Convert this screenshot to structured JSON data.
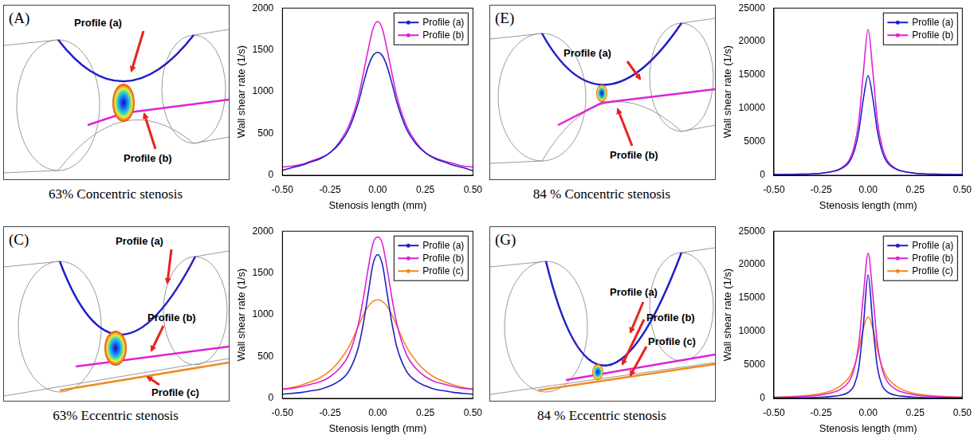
{
  "diagrams": [
    {
      "letter": "(A)",
      "caption": "63% Concentric stenosis",
      "labels": [
        "Profile (a)",
        "Profile (b)"
      ]
    },
    {
      "letter": "(C)",
      "caption": "63% Eccentric stenosis",
      "labels": [
        "Profile (a)",
        "Profile (b)",
        "Profile (c)"
      ]
    },
    {
      "letter": "(E)",
      "caption": "84 % Concentric stenosis",
      "labels": [
        "Profile (a)",
        "Profile (b)"
      ]
    },
    {
      "letter": "(G)",
      "caption": "84 % Eccentric stenosis",
      "labels": [
        "Profile (a)",
        "Profile (b)",
        "Profile (c)"
      ]
    }
  ],
  "chart_data": [
    {
      "type": "line",
      "xlabel": "Stenosis length (mm)",
      "ylabel": "Wall shear rate (1/s)",
      "x": [
        -0.5,
        -0.45,
        -0.4,
        -0.35,
        -0.3,
        -0.25,
        -0.2,
        -0.15,
        -0.1,
        -0.075,
        -0.05,
        -0.025,
        0,
        0.025,
        0.05,
        0.075,
        0.1,
        0.15,
        0.2,
        0.25,
        0.3,
        0.35,
        0.4,
        0.45,
        0.5
      ],
      "series": [
        {
          "name": "Profile (a)",
          "color": "#1f1fc8",
          "values": [
            60,
            90,
            120,
            160,
            200,
            270,
            380,
            560,
            880,
            1100,
            1300,
            1430,
            1470,
            1430,
            1300,
            1100,
            880,
            560,
            380,
            270,
            200,
            160,
            120,
            90,
            55
          ]
        },
        {
          "name": "Profile (b)",
          "color": "#e020d8",
          "values": [
            100,
            110,
            130,
            170,
            210,
            270,
            400,
            600,
            950,
            1220,
            1500,
            1750,
            1840,
            1750,
            1500,
            1220,
            950,
            600,
            400,
            270,
            210,
            170,
            140,
            110,
            100
          ]
        }
      ],
      "xlim": [
        -0.5,
        0.5
      ],
      "xticks": [
        {
          "value": -0.5,
          "label": "-0.50"
        },
        {
          "value": -0.25,
          "label": "-0.25"
        },
        {
          "value": 0,
          "label": "0.00"
        },
        {
          "value": 0.25,
          "label": "0.25"
        },
        {
          "value": 0.5,
          "label": "0.50"
        }
      ],
      "ylim": [
        0,
        2000
      ],
      "yticks": [
        0,
        500,
        1000,
        1500,
        2000
      ],
      "legend": "upper right",
      "grid": false
    },
    {
      "type": "line",
      "xlabel": "Stenosis length (mm)",
      "ylabel": "Wall shear rate (1/s)",
      "x": [
        -0.5,
        -0.45,
        -0.4,
        -0.35,
        -0.3,
        -0.25,
        -0.2,
        -0.15,
        -0.1,
        -0.075,
        -0.05,
        -0.025,
        0,
        0.025,
        0.05,
        0.075,
        0.1,
        0.15,
        0.2,
        0.25,
        0.3,
        0.35,
        0.4,
        0.45,
        0.5
      ],
      "series": [
        {
          "name": "Profile (a)",
          "color": "#1f1fc8",
          "values": [
            50,
            60,
            70,
            90,
            110,
            150,
            210,
            330,
            620,
            900,
            1250,
            1600,
            1720,
            1600,
            1250,
            900,
            620,
            330,
            210,
            150,
            110,
            90,
            70,
            60,
            50
          ]
        },
        {
          "name": "Profile (b)",
          "color": "#e020d8",
          "values": [
            110,
            120,
            140,
            170,
            200,
            260,
            360,
            530,
            900,
            1200,
            1550,
            1850,
            1930,
            1850,
            1550,
            1200,
            900,
            530,
            360,
            260,
            200,
            170,
            140,
            120,
            110
          ]
        },
        {
          "name": "Profile (c)",
          "color": "#f28a1e",
          "values": [
            110,
            130,
            160,
            200,
            250,
            330,
            450,
            620,
            870,
            1000,
            1100,
            1160,
            1180,
            1160,
            1100,
            1000,
            870,
            620,
            450,
            330,
            250,
            200,
            160,
            130,
            110
          ]
        }
      ],
      "xlim": [
        -0.5,
        0.5
      ],
      "xticks": [
        {
          "value": -0.5,
          "label": "-0.50"
        },
        {
          "value": -0.25,
          "label": "-0.25"
        },
        {
          "value": 0,
          "label": "0.00"
        },
        {
          "value": 0.25,
          "label": "0.25"
        },
        {
          "value": 0.5,
          "label": "0.50"
        }
      ],
      "ylim": [
        0,
        2000
      ],
      "yticks": [
        0,
        500,
        1000,
        1500,
        2000
      ],
      "legend": "upper right",
      "grid": false
    },
    {
      "type": "line",
      "xlabel": "Stenosis length (mm)",
      "ylabel": "Wall shear rate (1/s)",
      "x": [
        -0.5,
        -0.45,
        -0.4,
        -0.35,
        -0.3,
        -0.25,
        -0.2,
        -0.15,
        -0.1,
        -0.075,
        -0.05,
        -0.025,
        0,
        0.025,
        0.05,
        0.075,
        0.1,
        0.15,
        0.2,
        0.25,
        0.3,
        0.35,
        0.4,
        0.45,
        0.5
      ],
      "series": [
        {
          "name": "Profile (a)",
          "color": "#1f1fc8",
          "values": [
            100,
            110,
            130,
            160,
            200,
            300,
            500,
            900,
            2000,
            3500,
            6500,
            11500,
            14900,
            11500,
            6500,
            3500,
            2000,
            900,
            500,
            300,
            200,
            160,
            130,
            110,
            100
          ]
        },
        {
          "name": "Profile (b)",
          "color": "#e020d8",
          "values": [
            100,
            110,
            130,
            160,
            200,
            300,
            500,
            950,
            2300,
            4200,
            8000,
            15500,
            21800,
            15500,
            8000,
            4200,
            2300,
            950,
            500,
            300,
            200,
            160,
            130,
            110,
            100
          ]
        }
      ],
      "xlim": [
        -0.5,
        0.5
      ],
      "xticks": [
        {
          "value": -0.5,
          "label": "-0.50"
        },
        {
          "value": -0.25,
          "label": "-0.25"
        },
        {
          "value": 0,
          "label": "0.00"
        },
        {
          "value": 0.25,
          "label": "0.25"
        },
        {
          "value": 0.5,
          "label": "0.50"
        }
      ],
      "ylim": [
        0,
        25000
      ],
      "yticks": [
        0,
        5000,
        10000,
        15000,
        20000,
        25000
      ],
      "legend": "upper right",
      "grid": false
    },
    {
      "type": "line",
      "xlabel": "Stenosis length (mm)",
      "ylabel": "Wall shear rate (1/s)",
      "x": [
        -0.5,
        -0.45,
        -0.4,
        -0.35,
        -0.3,
        -0.25,
        -0.2,
        -0.15,
        -0.1,
        -0.075,
        -0.05,
        -0.025,
        0,
        0.025,
        0.05,
        0.075,
        0.1,
        0.15,
        0.2,
        0.25,
        0.3,
        0.35,
        0.4,
        0.45,
        0.5
      ],
      "series": [
        {
          "name": "Profile (a)",
          "color": "#1f1fc8",
          "values": [
            50,
            60,
            70,
            90,
            120,
            180,
            280,
            450,
            1000,
            1900,
            4500,
            11000,
            18500,
            11000,
            4500,
            1900,
            1000,
            450,
            280,
            180,
            120,
            90,
            70,
            60,
            50
          ]
        },
        {
          "name": "Profile (b)",
          "color": "#e020d8",
          "values": [
            150,
            170,
            200,
            260,
            350,
            500,
            800,
            1300,
            2600,
            4300,
            8000,
            15500,
            21700,
            15500,
            8000,
            4300,
            2600,
            1300,
            800,
            500,
            350,
            260,
            200,
            170,
            150
          ]
        },
        {
          "name": "Profile (c)",
          "color": "#f28a1e",
          "values": [
            200,
            240,
            300,
            380,
            500,
            700,
            1100,
            1800,
            3200,
            4700,
            7200,
            10500,
            12200,
            10500,
            7200,
            4700,
            3200,
            1800,
            1100,
            700,
            500,
            380,
            300,
            240,
            200
          ]
        }
      ],
      "xlim": [
        -0.5,
        0.5
      ],
      "xticks": [
        {
          "value": -0.5,
          "label": "-0.50"
        },
        {
          "value": -0.25,
          "label": "-0.25"
        },
        {
          "value": 0,
          "label": "0.00"
        },
        {
          "value": 0.25,
          "label": "0.25"
        },
        {
          "value": 0.5,
          "label": "0.50"
        }
      ],
      "ylim": [
        0,
        25000
      ],
      "yticks": [
        0,
        5000,
        10000,
        15000,
        20000,
        25000
      ],
      "legend": "upper right",
      "grid": false
    }
  ]
}
